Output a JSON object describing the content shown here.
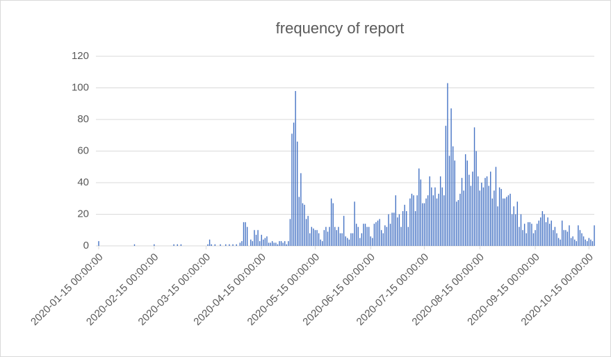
{
  "chart_data": {
    "type": "bar",
    "title": "frequency of report",
    "color": "#4472c4",
    "x": [
      "2020-01-15",
      "2020-01-16",
      "2020-01-17",
      "2020-01-18",
      "2020-01-19",
      "2020-01-20",
      "2020-01-21",
      "2020-01-22",
      "2020-01-23",
      "2020-01-24",
      "2020-01-25",
      "2020-01-26",
      "2020-01-27",
      "2020-01-28",
      "2020-01-29",
      "2020-01-30",
      "2020-01-31",
      "2020-02-01",
      "2020-02-02",
      "2020-02-03",
      "2020-02-04",
      "2020-02-05",
      "2020-02-06",
      "2020-02-07",
      "2020-02-08",
      "2020-02-09",
      "2020-02-10",
      "2020-02-11",
      "2020-02-12",
      "2020-02-13",
      "2020-02-14",
      "2020-02-15",
      "2020-02-16",
      "2020-02-17",
      "2020-02-18",
      "2020-02-19",
      "2020-02-20",
      "2020-02-21",
      "2020-02-22",
      "2020-02-23",
      "2020-02-24",
      "2020-02-25",
      "2020-02-26",
      "2020-02-27",
      "2020-02-28",
      "2020-02-29",
      "2020-03-01",
      "2020-03-02",
      "2020-03-03",
      "2020-03-04",
      "2020-03-05",
      "2020-03-06",
      "2020-03-07",
      "2020-03-08",
      "2020-03-09",
      "2020-03-10",
      "2020-03-11",
      "2020-03-12",
      "2020-03-13",
      "2020-03-14",
      "2020-03-15",
      "2020-03-16",
      "2020-03-17",
      "2020-03-18",
      "2020-03-19",
      "2020-03-20",
      "2020-03-21",
      "2020-03-22",
      "2020-03-23",
      "2020-03-24",
      "2020-03-25",
      "2020-03-26",
      "2020-03-27",
      "2020-03-28",
      "2020-03-29",
      "2020-03-30",
      "2020-03-31",
      "2020-04-01",
      "2020-04-02",
      "2020-04-03",
      "2020-04-04",
      "2020-04-05",
      "2020-04-06",
      "2020-04-07",
      "2020-04-08",
      "2020-04-09",
      "2020-04-10",
      "2020-04-11",
      "2020-04-12",
      "2020-04-13",
      "2020-04-14",
      "2020-04-15",
      "2020-04-16",
      "2020-04-17",
      "2020-04-18",
      "2020-04-19",
      "2020-04-20",
      "2020-04-21",
      "2020-04-22",
      "2020-04-23",
      "2020-04-24",
      "2020-04-25",
      "2020-04-26",
      "2020-04-27",
      "2020-04-28",
      "2020-04-29",
      "2020-04-30",
      "2020-05-01",
      "2020-05-02",
      "2020-05-03",
      "2020-05-04",
      "2020-05-05",
      "2020-05-06",
      "2020-05-07",
      "2020-05-08",
      "2020-05-09",
      "2020-05-10",
      "2020-05-11",
      "2020-05-12",
      "2020-05-13",
      "2020-05-14",
      "2020-05-15",
      "2020-05-16",
      "2020-05-17",
      "2020-05-18",
      "2020-05-19",
      "2020-05-20",
      "2020-05-21",
      "2020-05-22",
      "2020-05-23",
      "2020-05-24",
      "2020-05-25",
      "2020-05-26",
      "2020-05-27",
      "2020-05-28",
      "2020-05-29",
      "2020-05-30",
      "2020-05-31",
      "2020-06-01",
      "2020-06-02",
      "2020-06-03",
      "2020-06-04",
      "2020-06-05",
      "2020-06-06",
      "2020-06-07",
      "2020-06-08",
      "2020-06-09",
      "2020-06-10",
      "2020-06-11",
      "2020-06-12",
      "2020-06-13",
      "2020-06-14",
      "2020-06-15",
      "2020-06-16",
      "2020-06-17",
      "2020-06-18",
      "2020-06-19",
      "2020-06-20",
      "2020-06-21",
      "2020-06-22",
      "2020-06-23",
      "2020-06-24",
      "2020-06-25",
      "2020-06-26",
      "2020-06-27",
      "2020-06-28",
      "2020-06-29",
      "2020-06-30",
      "2020-07-01",
      "2020-07-02",
      "2020-07-03",
      "2020-07-04",
      "2020-07-05",
      "2020-07-06",
      "2020-07-07",
      "2020-07-08",
      "2020-07-09",
      "2020-07-10",
      "2020-07-11",
      "2020-07-12",
      "2020-07-13",
      "2020-07-14",
      "2020-07-15",
      "2020-07-16",
      "2020-07-17",
      "2020-07-18",
      "2020-07-19",
      "2020-07-20",
      "2020-07-21",
      "2020-07-22",
      "2020-07-23",
      "2020-07-24",
      "2020-07-25",
      "2020-07-26",
      "2020-07-27",
      "2020-07-28",
      "2020-07-29",
      "2020-07-30",
      "2020-07-31",
      "2020-08-01",
      "2020-08-02",
      "2020-08-03",
      "2020-08-04",
      "2020-08-05",
      "2020-08-06",
      "2020-08-07",
      "2020-08-08",
      "2020-08-09",
      "2020-08-10",
      "2020-08-11",
      "2020-08-12",
      "2020-08-13",
      "2020-08-14",
      "2020-08-15",
      "2020-08-16",
      "2020-08-17",
      "2020-08-18",
      "2020-08-19",
      "2020-08-20",
      "2020-08-21",
      "2020-08-22",
      "2020-08-23",
      "2020-08-24",
      "2020-08-25",
      "2020-08-26",
      "2020-08-27",
      "2020-08-28",
      "2020-08-29",
      "2020-08-30",
      "2020-08-31",
      "2020-09-01",
      "2020-09-02",
      "2020-09-03",
      "2020-09-04",
      "2020-09-05",
      "2020-09-06",
      "2020-09-07",
      "2020-09-08",
      "2020-09-09",
      "2020-09-10",
      "2020-09-11",
      "2020-09-12",
      "2020-09-13",
      "2020-09-14",
      "2020-09-15",
      "2020-09-16",
      "2020-09-17",
      "2020-09-18",
      "2020-09-19",
      "2020-09-20",
      "2020-09-21",
      "2020-09-22",
      "2020-09-23",
      "2020-09-24",
      "2020-09-25",
      "2020-09-26",
      "2020-09-27",
      "2020-09-28",
      "2020-09-29",
      "2020-09-30",
      "2020-10-01",
      "2020-10-02",
      "2020-10-03",
      "2020-10-04",
      "2020-10-05",
      "2020-10-06",
      "2020-10-07",
      "2020-10-08",
      "2020-10-09",
      "2020-10-10",
      "2020-10-11",
      "2020-10-12",
      "2020-10-13",
      "2020-10-14",
      "2020-10-15",
      "2020-10-16",
      "2020-10-17",
      "2020-10-18"
    ],
    "values": [
      3,
      0,
      0,
      0,
      0,
      0,
      0,
      0,
      0,
      0,
      0,
      0,
      0,
      0,
      0,
      0,
      0,
      0,
      0,
      0,
      1,
      0,
      0,
      0,
      0,
      0,
      0,
      0,
      0,
      0,
      0,
      1,
      0,
      0,
      0,
      0,
      0,
      0,
      0,
      0,
      0,
      0,
      1,
      0,
      1,
      0,
      1,
      0,
      0,
      0,
      0,
      0,
      0,
      0,
      0,
      0,
      0,
      0,
      0,
      0,
      0,
      1,
      4,
      1,
      0,
      1,
      0,
      0,
      1,
      0,
      0,
      1,
      0,
      1,
      0,
      1,
      0,
      1,
      0,
      2,
      3,
      15,
      15,
      12,
      0,
      4,
      3,
      10,
      7,
      10,
      3,
      7,
      4,
      5,
      6,
      2,
      2,
      3,
      2,
      2,
      1,
      3,
      3,
      2,
      3,
      1,
      3,
      17,
      71,
      78,
      98,
      66,
      31,
      46,
      27,
      26,
      17,
      19,
      8,
      12,
      11,
      10,
      10,
      8,
      4,
      3,
      10,
      12,
      9,
      12,
      30,
      27,
      12,
      10,
      12,
      8,
      8,
      19,
      6,
      5,
      4,
      8,
      8,
      28,
      14,
      12,
      5,
      8,
      14,
      14,
      12,
      12,
      6,
      5,
      14,
      15,
      16,
      17,
      10,
      8,
      13,
      12,
      20,
      14,
      21,
      21,
      32,
      18,
      20,
      12,
      22,
      26,
      22,
      12,
      30,
      33,
      32,
      22,
      32,
      49,
      42,
      27,
      27,
      30,
      32,
      44,
      37,
      32,
      37,
      30,
      33,
      44,
      37,
      32,
      76,
      103,
      57,
      87,
      63,
      54,
      28,
      29,
      33,
      43,
      35,
      58,
      54,
      45,
      38,
      47,
      75,
      60,
      44,
      35,
      40,
      37,
      43,
      44,
      38,
      47,
      30,
      35,
      50,
      25,
      37,
      36,
      30,
      30,
      31,
      32,
      33,
      20,
      25,
      20,
      28,
      12,
      20,
      10,
      14,
      8,
      15,
      15,
      14,
      8,
      10,
      14,
      16,
      18,
      22,
      20,
      15,
      18,
      14,
      16,
      10,
      12,
      8,
      5,
      4,
      16,
      10,
      10,
      9,
      13,
      5,
      6,
      4,
      3,
      13,
      10,
      8,
      6,
      4,
      3,
      5,
      4,
      3,
      13
    ],
    "xlim": [
      "2020-01-15",
      "2020-10-18"
    ],
    "xticks": [
      {
        "value": "2020-01-15",
        "label": "2020-01-15 00:00:00"
      },
      {
        "value": "2020-02-15",
        "label": "2020-02-15 00:00:00"
      },
      {
        "value": "2020-03-15",
        "label": "2020-03-15 00:00:00"
      },
      {
        "value": "2020-04-15",
        "label": "2020-04-15 00:00:00"
      },
      {
        "value": "2020-05-15",
        "label": "2020-05-15 00:00:00"
      },
      {
        "value": "2020-06-15",
        "label": "2020-06-15 00:00:00"
      },
      {
        "value": "2020-07-15",
        "label": "2020-07-15 00:00:00"
      },
      {
        "value": "2020-08-15",
        "label": "2020-08-15 00:00:00"
      },
      {
        "value": "2020-09-15",
        "label": "2020-09-15 00:00:00"
      },
      {
        "value": "2020-10-15",
        "label": "2020-10-15 00:00:00"
      }
    ],
    "ylim": [
      0,
      120
    ],
    "yticks": [
      0,
      20,
      40,
      60,
      80,
      100,
      120
    ],
    "grid": true
  }
}
